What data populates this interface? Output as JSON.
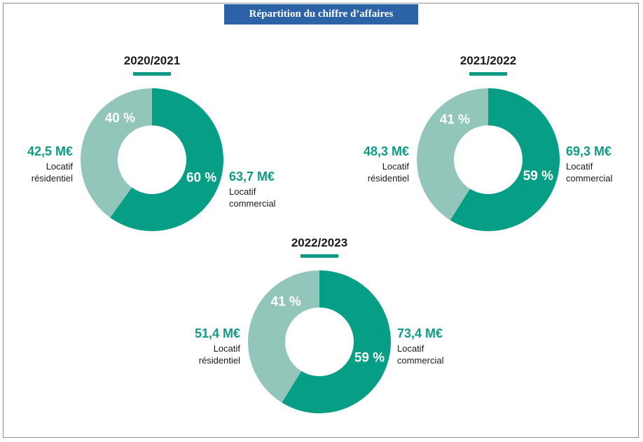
{
  "colors": {
    "commercial": "#079e86",
    "residential": "#93c6bb",
    "title_bg": "#2b63a6",
    "amount_text": "#0f9a86",
    "underline": "#0f9a86"
  },
  "title": "Répartition du chiffre d’affaires",
  "chart_data": [
    {
      "type": "pie",
      "year": "2020/2021",
      "slices": [
        {
          "label": "Locatif commercial",
          "label_lines": [
            "Locatif",
            "commercial"
          ],
          "amount": "63,7 M€",
          "value": 63.7,
          "pct_label": "60 %",
          "color": "#079e86"
        },
        {
          "label": "Locatif résidentiel",
          "label_lines": [
            "Locatif",
            "résidentiel"
          ],
          "amount": "42,5 M€",
          "value": 42.5,
          "pct_label": "40 %",
          "color": "#93c6bb"
        }
      ]
    },
    {
      "type": "pie",
      "year": "2021/2022",
      "slices": [
        {
          "label": "Locatif commercial",
          "label_lines": [
            "Locatif",
            "commercial"
          ],
          "amount": "69,3 M€",
          "value": 69.3,
          "pct_label": "59 %",
          "color": "#079e86"
        },
        {
          "label": "Locatif résidentiel",
          "label_lines": [
            "Locatif",
            "résidentiel"
          ],
          "amount": "48,3 M€",
          "value": 48.3,
          "pct_label": "41 %",
          "color": "#93c6bb"
        }
      ]
    },
    {
      "type": "pie",
      "year": "2022/2023",
      "slices": [
        {
          "label": "Locatif commercial",
          "label_lines": [
            "Locatif",
            "commercial"
          ],
          "amount": "73,4 M€",
          "value": 73.4,
          "pct_label": "59 %",
          "color": "#079e86"
        },
        {
          "label": "Locatif résidentiel",
          "label_lines": [
            "Locatif",
            "résidentiel"
          ],
          "amount": "51,4 M€",
          "value": 51.4,
          "pct_label": "41 %",
          "color": "#93c6bb"
        }
      ]
    }
  ]
}
